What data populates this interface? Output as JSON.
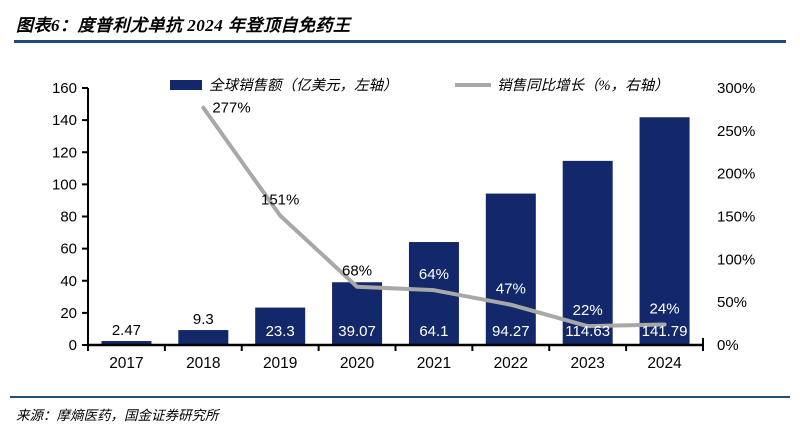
{
  "title": "图表6：度普利尤单抗 2024 年登顶自免药王",
  "source": "来源：摩熵医药，国金证券研究所",
  "colors": {
    "bar": "#13286b",
    "line": "#a8a8a8",
    "rule": "#1f4e79",
    "axis": "#000000",
    "label_dark": "#000000",
    "label_light": "#ffffff"
  },
  "legend": [
    {
      "swatch": "bar-swatch",
      "label": "全球销售额（亿美元，左轴）"
    },
    {
      "swatch": "line-swatch",
      "label": "销售同比增长（%，右轴）"
    }
  ],
  "chart_data": {
    "type": "bar",
    "categories": [
      "2017",
      "2018",
      "2019",
      "2020",
      "2021",
      "2022",
      "2023",
      "2024"
    ],
    "series": [
      {
        "name": "全球销售额（亿美元，左轴）",
        "type": "bar",
        "axis": "left",
        "values": [
          2.47,
          9.3,
          23.3,
          39.07,
          64.1,
          94.27,
          114.63,
          141.79
        ],
        "labels": [
          "2.47",
          "9.3",
          "23.3",
          "39.07",
          "64.1",
          "94.27",
          "114.63",
          "141.79"
        ]
      },
      {
        "name": "销售同比增长（%，右轴）",
        "type": "line",
        "axis": "right",
        "values": [
          null,
          277,
          151,
          68,
          64,
          47,
          22,
          24
        ],
        "labels": [
          null,
          "277%",
          "151%",
          "68%",
          "64%",
          "47%",
          "22%",
          "24%"
        ]
      }
    ],
    "left_axis": {
      "min": 0,
      "max": 160,
      "step": 20,
      "ticks": [
        "0",
        "20",
        "40",
        "60",
        "80",
        "100",
        "120",
        "140",
        "160"
      ]
    },
    "right_axis": {
      "min": 0,
      "max": 300,
      "step": 50,
      "ticks": [
        "0%",
        "50%",
        "100%",
        "150%",
        "200%",
        "250%",
        "300%"
      ]
    },
    "grid": false,
    "legend_position": "top"
  }
}
